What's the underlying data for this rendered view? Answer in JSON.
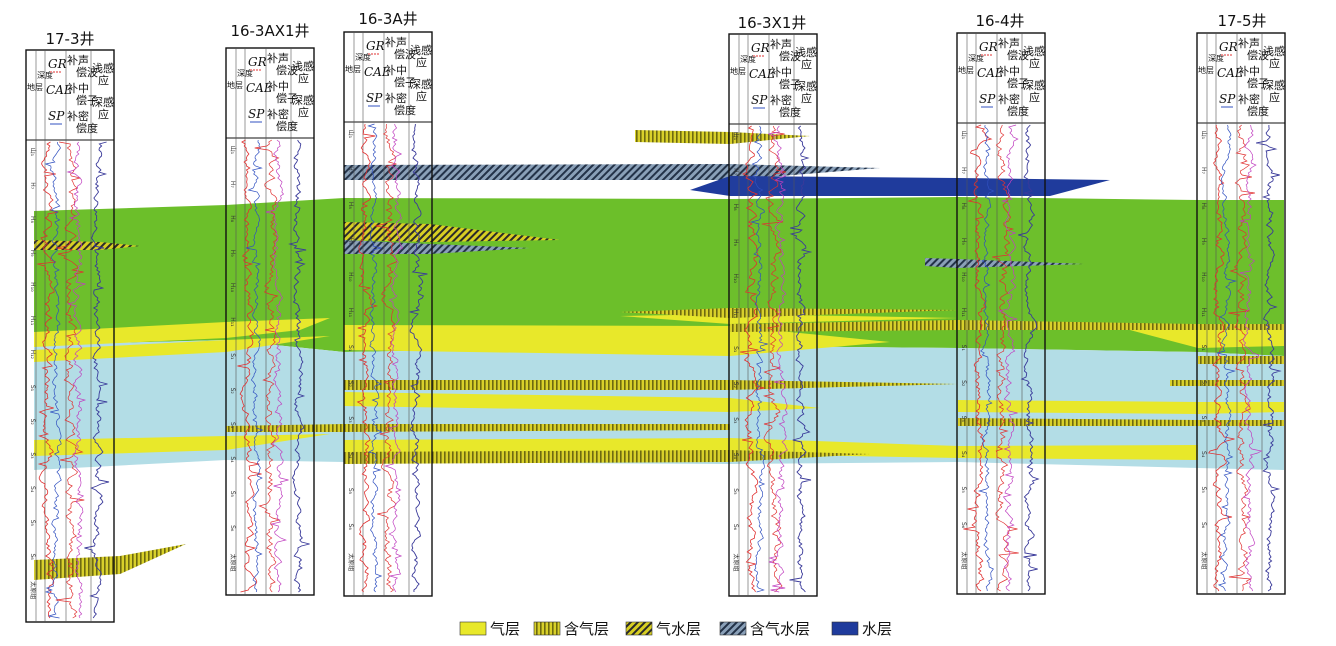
{
  "wells": [
    {
      "name": "17-3井",
      "col_labels": {
        "depth": "地层",
        "depth2": "深度",
        "gr": "GR",
        "cal": "CAL",
        "sp": "SP",
        "ac": "补声",
        "ac2": "偿波",
        "cnl": "补中",
        "cnl2": "偿子",
        "den": "补密",
        "den2": "偿度",
        "rs": "浅感",
        "rs2": "应",
        "rd": "深感",
        "rd2": "应"
      },
      "layers": [
        "山₁",
        "H₇",
        "H₈",
        "H₉",
        "H₁₀",
        "H₁₁",
        "H₁₂",
        "S₁",
        "S₂",
        "S₃",
        "S₄",
        "S₅",
        "S₆",
        "太原组"
      ]
    },
    {
      "name": "16-3AX1井",
      "col_labels": {
        "depth": "地层",
        "depth2": "深度",
        "gr": "GR",
        "cal": "CAL",
        "sp": "SP",
        "ac": "补声",
        "ac2": "偿波",
        "cnl": "补中",
        "cnl2": "偿子",
        "den": "补密",
        "den2": "偿度",
        "rs": "浅感",
        "rs2": "应",
        "rd": "深感",
        "rd2": "应"
      },
      "layers": [
        "山₁",
        "H₇",
        "H₈",
        "H₉",
        "H₁₀",
        "H₁₁",
        "S₁",
        "S₂",
        "S₃",
        "S₄",
        "S₅",
        "S₆",
        "太原组"
      ]
    },
    {
      "name": "16-3A井",
      "col_labels": {
        "depth": "地层",
        "depth2": "深度",
        "gr": "GR",
        "cal": "CAL",
        "sp": "SP",
        "ac": "补声",
        "ac2": "偿波",
        "cnl": "补中",
        "cnl2": "偿子",
        "den": "补密",
        "den2": "偿度",
        "rs": "浅感",
        "rs2": "应",
        "rd": "深感",
        "rd2": "应"
      },
      "layers": [
        "山₁",
        "H₇",
        "H₈",
        "H₉",
        "H₁₀",
        "H₁₁",
        "S₁",
        "S₂",
        "S₃",
        "S₄",
        "S₅",
        "S₆",
        "太原组"
      ]
    },
    {
      "name": "16-3X1井",
      "col_labels": {
        "depth": "地层",
        "depth2": "深度",
        "gr": "GR",
        "cal": "CAL",
        "sp": "SP",
        "ac": "补声",
        "ac2": "偿波",
        "cnl": "补中",
        "cnl2": "偿子",
        "den": "补密",
        "den2": "偿度",
        "rs": "浅感",
        "rs2": "应",
        "rd": "深感",
        "rd2": "应"
      },
      "layers": [
        "山₁",
        "H₇",
        "H₈",
        "H₉",
        "H₁₀",
        "H₁₁",
        "S₁",
        "S₂",
        "S₃",
        "S₄",
        "S₅",
        "S₆",
        "太原组"
      ]
    },
    {
      "name": "16-4井",
      "col_labels": {
        "depth": "地层",
        "depth2": "深度",
        "gr": "GR",
        "cal": "CAL",
        "sp": "SP",
        "ac": "补声",
        "ac2": "偿波",
        "cnl": "补中",
        "cnl2": "偿子",
        "den": "补密",
        "den2": "偿度",
        "rs": "浅感",
        "rs2": "应",
        "rd": "深感",
        "rd2": "应"
      },
      "layers": [
        "山₁",
        "H₇",
        "H₈",
        "H₉",
        "H₁₀",
        "H₁₁",
        "S₁",
        "S₂",
        "S₃",
        "S₄",
        "S₅",
        "S₆",
        "太原组"
      ]
    },
    {
      "name": "17-5井",
      "col_labels": {
        "depth": "地层",
        "depth2": "深度",
        "gr": "GR",
        "cal": "CAL",
        "sp": "SP",
        "ac": "补声",
        "ac2": "偿波",
        "cnl": "补中",
        "cnl2": "偿子",
        "den": "补密",
        "den2": "偿度",
        "rs": "浅感",
        "rs2": "应",
        "rd": "深感",
        "rd2": "应"
      },
      "layers": [
        "山₁",
        "H₇",
        "H₈",
        "H₉",
        "H₁₀",
        "H₁₁",
        "S₁",
        "S₂",
        "S₃",
        "S₄",
        "S₅",
        "S₆",
        "太原组"
      ]
    }
  ],
  "legend": [
    {
      "label": "气层",
      "pattern": "gas",
      "color": "#e8e82a"
    },
    {
      "label": "含气层",
      "pattern": "gas-bearing",
      "color": "#b5b020"
    },
    {
      "label": "气水层",
      "pattern": "gas-water",
      "color": "#c9c21e"
    },
    {
      "label": "含气水层",
      "pattern": "gas-bearing-water",
      "color": "#5c6e8a"
    },
    {
      "label": "水层",
      "pattern": "water",
      "color": "#1f3b9c"
    }
  ],
  "colors": {
    "mudstone": "#6cbf2a",
    "water_zone": "#b3dde6",
    "gas": "#e8e82a",
    "water": "#1f3b9c",
    "gr_curve": "#e03030",
    "sp_curve": "#3050c0",
    "res_curve": "#3a3a9a"
  }
}
